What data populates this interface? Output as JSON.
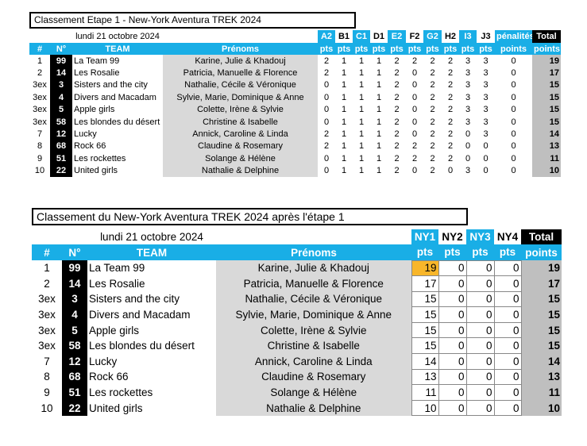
{
  "stage_ranking": {
    "title": "Classement Etape 1 - New-York Aventura TREK 2024",
    "date": "lundi 21 octobre 2024",
    "columns": [
      "A2",
      "B1",
      "C1",
      "D1",
      "E2",
      "F2",
      "G2",
      "H2",
      "I3",
      "J3",
      "pénalités",
      "Total"
    ],
    "subheaders": [
      "#",
      "N°",
      "TEAM",
      "Prénoms",
      "pts",
      "pts",
      "pts",
      "pts",
      "pts",
      "pts",
      "pts",
      "pts",
      "pts",
      "pts",
      "points",
      "points"
    ],
    "rows": [
      [
        1,
        99,
        "La Team 99",
        "Karine, Julie & Khadouj",
        2,
        1,
        1,
        1,
        2,
        2,
        2,
        2,
        3,
        3,
        0,
        19
      ],
      [
        2,
        14,
        "Les Rosalie",
        "Patricia, Manuelle & Florence",
        2,
        1,
        1,
        1,
        2,
        0,
        2,
        2,
        3,
        3,
        0,
        17
      ],
      [
        "3ex",
        3,
        "Sisters and the city",
        "Nathalie, Cécile & Véronique",
        0,
        1,
        1,
        1,
        2,
        0,
        2,
        2,
        3,
        3,
        0,
        15
      ],
      [
        "3ex",
        4,
        "Divers and Macadam",
        "Sylvie, Marie, Dominique & Anne",
        0,
        1,
        1,
        1,
        2,
        0,
        2,
        2,
        3,
        3,
        0,
        15
      ],
      [
        "3ex",
        5,
        "Apple girls",
        "Colette, Irène & Sylvie",
        0,
        1,
        1,
        1,
        2,
        0,
        2,
        2,
        3,
        3,
        0,
        15
      ],
      [
        "3ex",
        58,
        "Les blondes du désert",
        "Christine & Isabelle",
        0,
        1,
        1,
        1,
        2,
        0,
        2,
        2,
        3,
        3,
        0,
        15
      ],
      [
        7,
        12,
        "Lucky",
        "Annick, Caroline & Linda",
        2,
        1,
        1,
        1,
        2,
        0,
        2,
        2,
        0,
        3,
        0,
        14
      ],
      [
        8,
        68,
        "Rock 66",
        "Claudine & Rosemary",
        2,
        1,
        1,
        1,
        2,
        2,
        2,
        2,
        0,
        0,
        0,
        13
      ],
      [
        9,
        51,
        "Les rockettes",
        "Solange & Hélène",
        0,
        1,
        1,
        1,
        2,
        2,
        2,
        2,
        0,
        0,
        0,
        11
      ],
      [
        10,
        22,
        "United girls",
        "Nathalie & Delphine",
        0,
        1,
        1,
        1,
        2,
        0,
        2,
        0,
        3,
        0,
        0,
        10
      ]
    ]
  },
  "overall_ranking": {
    "title": "Classement du New-York Aventura TREK 2024 après l'étape 1",
    "date": "lundi 21 octobre 2024",
    "columns": [
      "NY1",
      "NY2",
      "NY3",
      "NY4",
      "Total"
    ],
    "subheaders": [
      "#",
      "N°",
      "TEAM",
      "Prénoms",
      "pts",
      "pts",
      "pts",
      "pts",
      "points"
    ],
    "rows": [
      [
        1,
        99,
        "La Team 99",
        "Karine, Julie & Khadouj",
        19,
        0,
        0,
        0,
        19
      ],
      [
        2,
        14,
        "Les Rosalie",
        "Patricia, Manuelle & Florence",
        17,
        0,
        0,
        0,
        17
      ],
      [
        "3ex",
        3,
        "Sisters and the city",
        "Nathalie, Cécile & Véronique",
        15,
        0,
        0,
        0,
        15
      ],
      [
        "3ex",
        4,
        "Divers and Macadam",
        "Sylvie, Marie, Dominique & Anne",
        15,
        0,
        0,
        0,
        15
      ],
      [
        "3ex",
        5,
        "Apple girls",
        "Colette, Irène & Sylvie",
        15,
        0,
        0,
        0,
        15
      ],
      [
        "3ex",
        58,
        "Les blondes du désert",
        "Christine & Isabelle",
        15,
        0,
        0,
        0,
        15
      ],
      [
        7,
        12,
        "Lucky",
        "Annick, Caroline & Linda",
        14,
        0,
        0,
        0,
        14
      ],
      [
        8,
        68,
        "Rock 66",
        "Claudine & Rosemary",
        13,
        0,
        0,
        0,
        13
      ],
      [
        9,
        51,
        "Les rockettes",
        "Solange & Hélène",
        11,
        0,
        0,
        0,
        11
      ],
      [
        10,
        22,
        "United girls",
        "Nathalie & Delphine",
        10,
        0,
        0,
        0,
        10
      ]
    ]
  }
}
